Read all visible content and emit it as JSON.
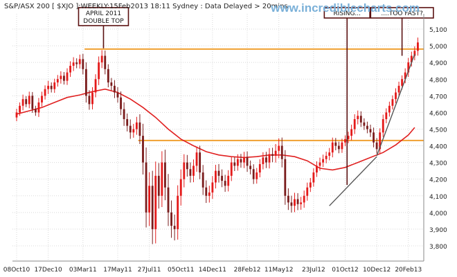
{
  "header": {
    "title": "S&P/ASX 200 [ $XJO ]:WEEKLY:15Feb2013 18:11 Sydney : Data Delayed > 20mins",
    "watermark": "www.incrediblecharts.com"
  },
  "chart_data": {
    "type": "candlestick",
    "title": "S&P/ASX 200 [ $XJO ]:WEEKLY:15Feb2013 18:11 Sydney : Data Delayed > 20mins",
    "ylim": [
      3750,
      5150
    ],
    "y_ticks": [
      3800,
      3900,
      4000,
      4100,
      4200,
      4300,
      4400,
      4500,
      4600,
      4700,
      4800,
      4900,
      5000,
      5100
    ],
    "y_tick_labels": [
      "3,800",
      "3,900",
      "4,000",
      "4,100",
      "4,200",
      "4,300",
      "4,400",
      "4,500",
      "4,600",
      "4,700",
      "4,800",
      "4,900",
      "5,000",
      "5,100"
    ],
    "x_tick_labels": [
      "08Oct10",
      "17Dec10",
      "03Mar11",
      "17May11",
      "27Jul11",
      "05Oct11",
      "14Dec11",
      "28Feb12",
      "11May12",
      "23Jul12",
      "01Oct12",
      "10Dec12",
      "20Feb13"
    ],
    "x_tick_weeks": [
      0,
      10,
      21,
      32,
      42,
      52,
      62,
      73,
      83,
      94,
      104,
      114,
      124
    ],
    "weeks_total": 128,
    "grid": true,
    "colors": {
      "up_candle": "#e41a1a",
      "down_candle": "#7a1c1c",
      "moving_average": "#e02020",
      "horizontal_levels": "#f0a030",
      "trendlines": "#555555",
      "callout_line": "#5a1010",
      "grid": "#d8d8d8"
    },
    "horizontal_levels": [
      4980,
      4432
    ],
    "annotations": [
      {
        "id": "april",
        "line1": "APRIL 2011",
        "line2": "DOUBLE TOP",
        "week": 27.5,
        "price": 4985
      },
      {
        "id": "rising",
        "line1": "RISING...",
        "week": 104.6,
        "price": 4165
      },
      {
        "id": "toofast",
        "line1": "....TOO FAST?",
        "week": 122,
        "price": 4940
      }
    ],
    "trendlines": [
      {
        "from": [
          99,
          4040
        ],
        "to": [
          114,
          4335
        ]
      },
      {
        "from": [
          114,
          4340
        ],
        "to": [
          126,
          4950
        ]
      }
    ],
    "moving_average": {
      "weeks": [
        0,
        4,
        8,
        12,
        16,
        20,
        24,
        28,
        32,
        36,
        40,
        44,
        48,
        52,
        56,
        60,
        64,
        68,
        72,
        76,
        80,
        84,
        88,
        92,
        96,
        100,
        104,
        108,
        112,
        116,
        120,
        124,
        126
      ],
      "values": [
        4590,
        4610,
        4630,
        4660,
        4690,
        4705,
        4725,
        4740,
        4720,
        4680,
        4630,
        4570,
        4500,
        4440,
        4400,
        4365,
        4345,
        4335,
        4330,
        4335,
        4345,
        4345,
        4335,
        4310,
        4265,
        4255,
        4270,
        4300,
        4330,
        4360,
        4405,
        4465,
        4510
      ]
    },
    "closes": [
      4600,
      4640,
      4680,
      4650,
      4700,
      4620,
      4600,
      4660,
      4700,
      4740,
      4760,
      4740,
      4780,
      4800,
      4820,
      4790,
      4840,
      4880,
      4900,
      4890,
      4920,
      4860,
      4700,
      4650,
      4720,
      4800,
      4900,
      4940,
      4860,
      4780,
      4760,
      4720,
      4690,
      4620,
      4560,
      4520,
      4480,
      4500,
      4540,
      4460,
      4300,
      4000,
      4160,
      3900,
      4220,
      4100,
      4300,
      4150,
      4000,
      3920,
      3900,
      4100,
      4200,
      4300,
      4260,
      4220,
      4280,
      4360,
      4240,
      4150,
      4100,
      4120,
      4180,
      4250,
      4220,
      4190,
      4160,
      4220,
      4300,
      4280,
      4320,
      4300,
      4330,
      4280,
      4260,
      4200,
      4240,
      4290,
      4330,
      4300,
      4350,
      4340,
      4370,
      4400,
      4320,
      4100,
      4060,
      4040,
      4080,
      4050,
      4060,
      4100,
      4150,
      4180,
      4240,
      4280,
      4300,
      4320,
      4340,
      4360,
      4420,
      4400,
      4380,
      4420,
      4440,
      4460,
      4500,
      4560,
      4580,
      4540,
      4520,
      4500,
      4480,
      4420,
      4380,
      4480,
      4560,
      4600,
      4640,
      4680,
      4720,
      4760,
      4800,
      4840,
      4900,
      4940,
      4970,
      5020
    ],
    "volatility": [
      50,
      45,
      60,
      40,
      55,
      50,
      45,
      60,
      55,
      50,
      65,
      45,
      50,
      55,
      60,
      50,
      55,
      60,
      70,
      55,
      60,
      70,
      90,
      75,
      70,
      65,
      80,
      75,
      70,
      65,
      60,
      75,
      70,
      80,
      90,
      75,
      85,
      70,
      75,
      110,
      160,
      200,
      180,
      200,
      190,
      170,
      150,
      170,
      180,
      160,
      150,
      140,
      130,
      110,
      100,
      90,
      85,
      80,
      90,
      100,
      95,
      90,
      85,
      80,
      90,
      85,
      80,
      75,
      70,
      70,
      65,
      70,
      75,
      80,
      70,
      65,
      60,
      65,
      70,
      75,
      80,
      85,
      90,
      100,
      110,
      120,
      100,
      90,
      85,
      80,
      75,
      70,
      65,
      60,
      55,
      60,
      65,
      60,
      55,
      60,
      65,
      60,
      55,
      50,
      50,
      55,
      60,
      65,
      70,
      60,
      55,
      55,
      60,
      65,
      60,
      55,
      60,
      55,
      55,
      50,
      55,
      55,
      50,
      55,
      60,
      55,
      60,
      65
    ]
  }
}
